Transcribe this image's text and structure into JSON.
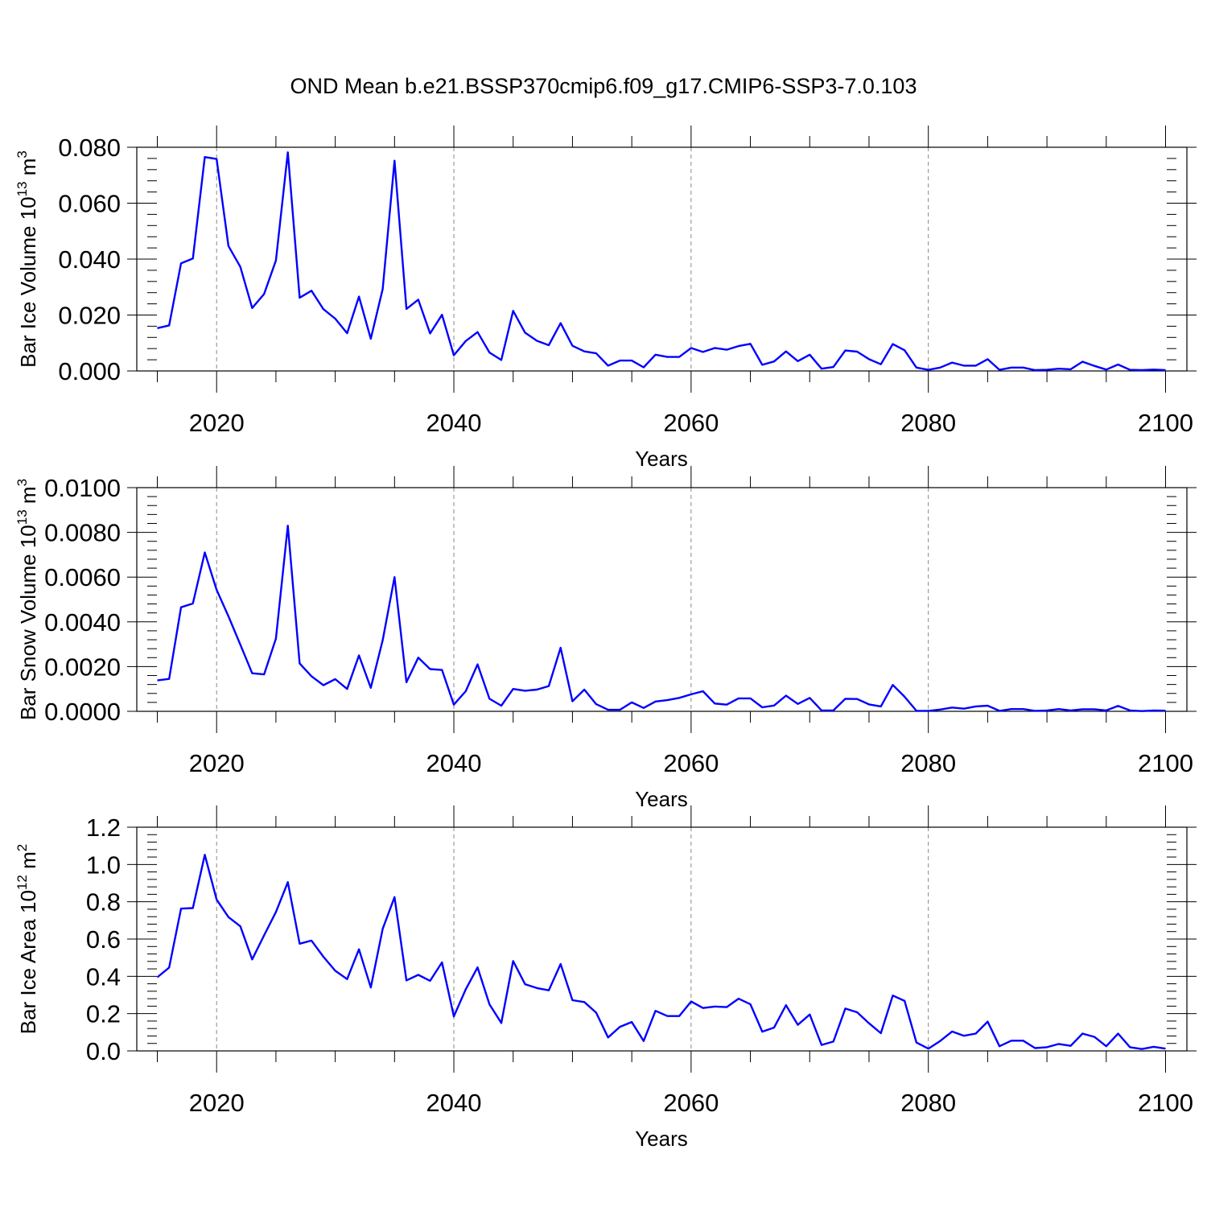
{
  "title": "OND Mean b.e21.BSSP370cmip6.f09_g17.CMIP6-SSP3-7.0.103",
  "line_color": "#0000ff",
  "chart_data": [
    {
      "type": "line",
      "ylabel": "Bar Ice Volume 10",
      "ylabel_exp": "13",
      "ylabel_unit": "m",
      "ylabel_unit_exp": "3",
      "xlabel": "Years",
      "xlim": [
        2015,
        2100
      ],
      "ylim": [
        0,
        0.08
      ],
      "xticks": [
        "2020",
        "2040",
        "2060",
        "2080",
        "2100"
      ],
      "yticks": [
        "0.000",
        "0.020",
        "0.040",
        "0.060",
        "0.080"
      ],
      "grid": "vertical dashed at major x ticks",
      "series": [
        {
          "x": [
            2015,
            2016,
            2017,
            2018,
            2019,
            2020,
            2021,
            2022,
            2023,
            2024,
            2025,
            2026,
            2027,
            2028,
            2029,
            2030,
            2031,
            2032,
            2033,
            2034,
            2035,
            2036,
            2037,
            2038,
            2039,
            2040,
            2041,
            2042,
            2043,
            2044,
            2045,
            2046,
            2047,
            2048,
            2049,
            2050,
            2051,
            2052,
            2053,
            2054,
            2055,
            2056,
            2057,
            2058,
            2059,
            2060,
            2061,
            2062,
            2063,
            2064,
            2065,
            2066,
            2067,
            2068,
            2069,
            2070,
            2071,
            2072,
            2073,
            2074,
            2075,
            2076,
            2077,
            2078,
            2079,
            2080,
            2081,
            2082,
            2083,
            2084,
            2085,
            2086,
            2087,
            2088,
            2089,
            2090,
            2091,
            2092,
            2093,
            2094,
            2095,
            2096,
            2097,
            2098,
            2099,
            2100
          ],
          "y": [
            0.0153,
            0.0163,
            0.0385,
            0.0402,
            0.0765,
            0.0758,
            0.0447,
            0.0372,
            0.0225,
            0.0275,
            0.0395,
            0.0782,
            0.0262,
            0.0287,
            0.0221,
            0.0187,
            0.0135,
            0.0266,
            0.0115,
            0.0293,
            0.0752,
            0.0222,
            0.0255,
            0.0134,
            0.0201,
            0.0056,
            0.0107,
            0.0139,
            0.0066,
            0.0039,
            0.0215,
            0.0137,
            0.0108,
            0.0092,
            0.0171,
            0.009,
            0.007,
            0.0063,
            0.0019,
            0.0037,
            0.0037,
            0.0013,
            0.0058,
            0.005,
            0.005,
            0.0082,
            0.0068,
            0.0082,
            0.0076,
            0.0089,
            0.0097,
            0.0022,
            0.0034,
            0.007,
            0.0035,
            0.0058,
            0.0008,
            0.0014,
            0.0073,
            0.0069,
            0.0042,
            0.0024,
            0.0096,
            0.0074,
            0.0012,
            0.0004,
            0.0012,
            0.003,
            0.0019,
            0.0019,
            0.0042,
            0.0004,
            0.0012,
            0.0012,
            0.0003,
            0.0004,
            0.0008,
            0.0006,
            0.0033,
            0.0018,
            0.0005,
            0.0023,
            0.0004,
            0.0003,
            0.0005,
            0.0003
          ]
        }
      ]
    },
    {
      "type": "line",
      "ylabel": "Bar Snow Volume 10",
      "ylabel_exp": "13",
      "ylabel_unit": "m",
      "ylabel_unit_exp": "3",
      "xlabel": "Years",
      "xlim": [
        2015,
        2100
      ],
      "ylim": [
        0,
        0.01
      ],
      "xticks": [
        "2020",
        "2040",
        "2060",
        "2080",
        "2100"
      ],
      "yticks": [
        "0.0000",
        "0.0020",
        "0.0040",
        "0.0060",
        "0.0080",
        "0.0100"
      ],
      "grid": "vertical dashed at major x ticks",
      "series": [
        {
          "x": [
            2015,
            2016,
            2017,
            2018,
            2019,
            2020,
            2021,
            2022,
            2023,
            2024,
            2025,
            2026,
            2027,
            2028,
            2029,
            2030,
            2031,
            2032,
            2033,
            2034,
            2035,
            2036,
            2037,
            2038,
            2039,
            2040,
            2041,
            2042,
            2043,
            2044,
            2045,
            2046,
            2047,
            2048,
            2049,
            2050,
            2051,
            2052,
            2053,
            2054,
            2055,
            2056,
            2057,
            2058,
            2059,
            2060,
            2061,
            2062,
            2063,
            2064,
            2065,
            2066,
            2067,
            2068,
            2069,
            2070,
            2071,
            2072,
            2073,
            2074,
            2075,
            2076,
            2077,
            2078,
            2079,
            2080,
            2081,
            2082,
            2083,
            2084,
            2085,
            2086,
            2087,
            2088,
            2089,
            2090,
            2091,
            2092,
            2093,
            2094,
            2095,
            2096,
            2097,
            2098,
            2099,
            2100
          ],
          "y": [
            0.00138,
            0.00145,
            0.00465,
            0.00482,
            0.0071,
            0.00543,
            0.00425,
            0.00298,
            0.0017,
            0.00165,
            0.00325,
            0.0083,
            0.00214,
            0.00157,
            0.00117,
            0.00144,
            0.001,
            0.0025,
            0.00105,
            0.00318,
            0.006,
            0.0013,
            0.0024,
            0.00189,
            0.00185,
            0.0003,
            0.0009,
            0.0021,
            0.00056,
            0.00025,
            0.001,
            0.00092,
            0.00097,
            0.00113,
            0.00284,
            0.00045,
            0.00097,
            0.00032,
            7e-05,
            7e-05,
            0.0004,
            0.00015,
            0.00044,
            0.0005,
            0.0006,
            0.00076,
            0.0009,
            0.00035,
            0.0003,
            0.00058,
            0.00058,
            0.00018,
            0.00026,
            0.0007,
            0.00033,
            0.0006,
            4e-05,
            4e-05,
            0.00056,
            0.00055,
            0.00031,
            0.00022,
            0.00118,
            0.00065,
            2e-05,
            2e-05,
            8e-05,
            0.00017,
            0.00012,
            0.00022,
            0.00025,
            2e-05,
            0.0001,
            0.0001,
            2e-05,
            4e-05,
            0.0001,
            4e-05,
            9e-05,
            9e-05,
            4e-05,
            0.00024,
            4e-05,
            1e-05,
            4e-05,
            3e-05
          ]
        }
      ]
    },
    {
      "type": "line",
      "ylabel": "Bar Ice Area 10",
      "ylabel_exp": "12",
      "ylabel_unit": "m",
      "ylabel_unit_exp": "2",
      "xlabel": "Years",
      "xlim": [
        2015,
        2100
      ],
      "ylim": [
        0,
        1.2
      ],
      "xticks": [
        "2020",
        "2040",
        "2060",
        "2080",
        "2100"
      ],
      "yticks": [
        "0.0",
        "0.2",
        "0.4",
        "0.6",
        "0.8",
        "1.0",
        "1.2"
      ],
      "grid": "vertical dashed at major x ticks",
      "series": [
        {
          "x": [
            2015,
            2016,
            2017,
            2018,
            2019,
            2020,
            2021,
            2022,
            2023,
            2024,
            2025,
            2026,
            2027,
            2028,
            2029,
            2030,
            2031,
            2032,
            2033,
            2034,
            2035,
            2036,
            2037,
            2038,
            2039,
            2040,
            2041,
            2042,
            2043,
            2044,
            2045,
            2046,
            2047,
            2048,
            2049,
            2050,
            2051,
            2052,
            2053,
            2054,
            2055,
            2056,
            2057,
            2058,
            2059,
            2060,
            2061,
            2062,
            2063,
            2064,
            2065,
            2066,
            2067,
            2068,
            2069,
            2070,
            2071,
            2072,
            2073,
            2074,
            2075,
            2076,
            2077,
            2078,
            2079,
            2080,
            2081,
            2082,
            2083,
            2084,
            2085,
            2086,
            2087,
            2088,
            2089,
            2090,
            2091,
            2092,
            2093,
            2094,
            2095,
            2096,
            2097,
            2098,
            2099,
            2100
          ],
          "y": [
            0.395,
            0.447,
            0.763,
            0.766,
            1.052,
            0.812,
            0.718,
            0.668,
            0.491,
            0.62,
            0.745,
            0.905,
            0.575,
            0.592,
            0.505,
            0.43,
            0.385,
            0.545,
            0.34,
            0.655,
            0.825,
            0.378,
            0.408,
            0.376,
            0.475,
            0.185,
            0.33,
            0.448,
            0.25,
            0.15,
            0.482,
            0.358,
            0.337,
            0.325,
            0.466,
            0.272,
            0.262,
            0.205,
            0.072,
            0.129,
            0.155,
            0.053,
            0.215,
            0.187,
            0.187,
            0.265,
            0.23,
            0.238,
            0.235,
            0.28,
            0.25,
            0.103,
            0.125,
            0.245,
            0.14,
            0.195,
            0.032,
            0.05,
            0.227,
            0.207,
            0.148,
            0.095,
            0.297,
            0.268,
            0.045,
            0.012,
            0.053,
            0.104,
            0.081,
            0.093,
            0.157,
            0.025,
            0.055,
            0.055,
            0.015,
            0.02,
            0.037,
            0.027,
            0.093,
            0.075,
            0.025,
            0.093,
            0.02,
            0.01,
            0.022,
            0.012
          ]
        }
      ]
    }
  ]
}
